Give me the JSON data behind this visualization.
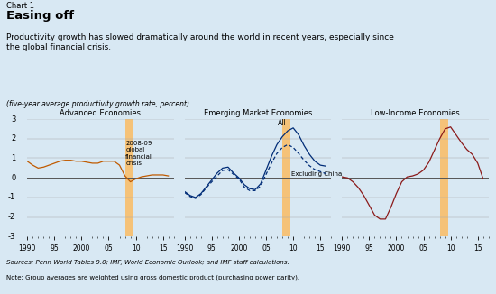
{
  "background_color": "#d8e8f3",
  "chart_label": "Chart 1",
  "title": "Easing off",
  "subtitle": "Productivity growth has slowed dramatically around the world in recent years, especially since\nthe global financial crisis.",
  "ylabel": "(five-year average productivity growth rate, percent)",
  "sources": "Sources: Penn World Tables 9.0; IMF, –World Economic Outlook; and IMF staff calculations.",
  "sources_plain": "Sources: Penn World Tables 9.0; IMF, World Economic Outlook; and IMF staff calculations.",
  "note": "Note: Group averages are weighted using gross domestic product (purchasing power parity).",
  "panel_titles": [
    "Advanced Economies",
    "Emerging Market Economies",
    "Low-Income Economies"
  ],
  "xtick_labels": [
    "1990",
    "95",
    "2000",
    "05",
    "10",
    "15"
  ],
  "ylim": [
    -3,
    3
  ],
  "yticks": [
    -2,
    -1,
    0,
    1,
    2,
    3
  ],
  "crisis_shade_color": "#f5c278",
  "adv_x": [
    1990,
    1991,
    1992,
    1993,
    1994,
    1995,
    1996,
    1997,
    1998,
    1999,
    2000,
    2001,
    2002,
    2003,
    2004,
    2005,
    2006,
    2007,
    2008,
    2009,
    2010,
    2011,
    2012,
    2013,
    2014,
    2015,
    2016
  ],
  "adv_y": [
    0.85,
    0.65,
    0.5,
    0.55,
    0.65,
    0.75,
    0.85,
    0.9,
    0.9,
    0.85,
    0.85,
    0.8,
    0.75,
    0.75,
    0.85,
    0.85,
    0.85,
    0.65,
    0.1,
    -0.2,
    -0.05,
    0.05,
    0.1,
    0.15,
    0.15,
    0.15,
    0.1
  ],
  "adv_color": "#c05a00",
  "em_all_x": [
    1990,
    1991,
    1992,
    1993,
    1994,
    1995,
    1996,
    1997,
    1998,
    1999,
    2000,
    2001,
    2002,
    2003,
    2004,
    2005,
    2006,
    2007,
    2008,
    2009,
    2010,
    2011,
    2012,
    2013,
    2014,
    2015,
    2016
  ],
  "em_all_y": [
    -0.7,
    -0.9,
    -1.0,
    -0.8,
    -0.45,
    -0.1,
    0.25,
    0.5,
    0.55,
    0.25,
    0.0,
    -0.35,
    -0.55,
    -0.6,
    -0.3,
    0.4,
    1.1,
    1.7,
    2.1,
    2.4,
    2.55,
    2.2,
    1.65,
    1.2,
    0.85,
    0.65,
    0.6
  ],
  "em_all_color": "#002c77",
  "em_excl_x": [
    1990,
    1991,
    1992,
    1993,
    1994,
    1995,
    1996,
    1997,
    1998,
    1999,
    2000,
    2001,
    2002,
    2003,
    2004,
    2005,
    2006,
    2007,
    2008,
    2009,
    2010,
    2011,
    2012,
    2013,
    2014,
    2015,
    2016
  ],
  "em_excl_y": [
    -0.75,
    -0.95,
    -1.05,
    -0.85,
    -0.5,
    -0.2,
    0.1,
    0.38,
    0.42,
    0.18,
    -0.05,
    -0.48,
    -0.65,
    -0.65,
    -0.42,
    0.18,
    0.75,
    1.25,
    1.55,
    1.7,
    1.55,
    1.25,
    0.9,
    0.62,
    0.42,
    0.32,
    0.22
  ],
  "em_excl_color": "#002c77",
  "li_x": [
    1990,
    1991,
    1992,
    1993,
    1994,
    1995,
    1996,
    1997,
    1998,
    1999,
    2000,
    2001,
    2002,
    2003,
    2004,
    2005,
    2006,
    2007,
    2008,
    2009,
    2010,
    2011,
    2012,
    2013,
    2014,
    2015,
    2016
  ],
  "li_y": [
    0.05,
    0.0,
    -0.2,
    -0.5,
    -0.9,
    -1.4,
    -1.9,
    -2.1,
    -2.1,
    -1.5,
    -0.8,
    -0.2,
    0.05,
    0.1,
    0.2,
    0.4,
    0.8,
    1.4,
    2.0,
    2.5,
    2.6,
    2.2,
    1.8,
    1.45,
    1.2,
    0.75,
    -0.05
  ],
  "li_color": "#8b1a1a",
  "annotation_crisis": "2008-09\nglobal\nfinancial\ncrisis",
  "annotation_all": "All",
  "annotation_excl": "Excluding China"
}
